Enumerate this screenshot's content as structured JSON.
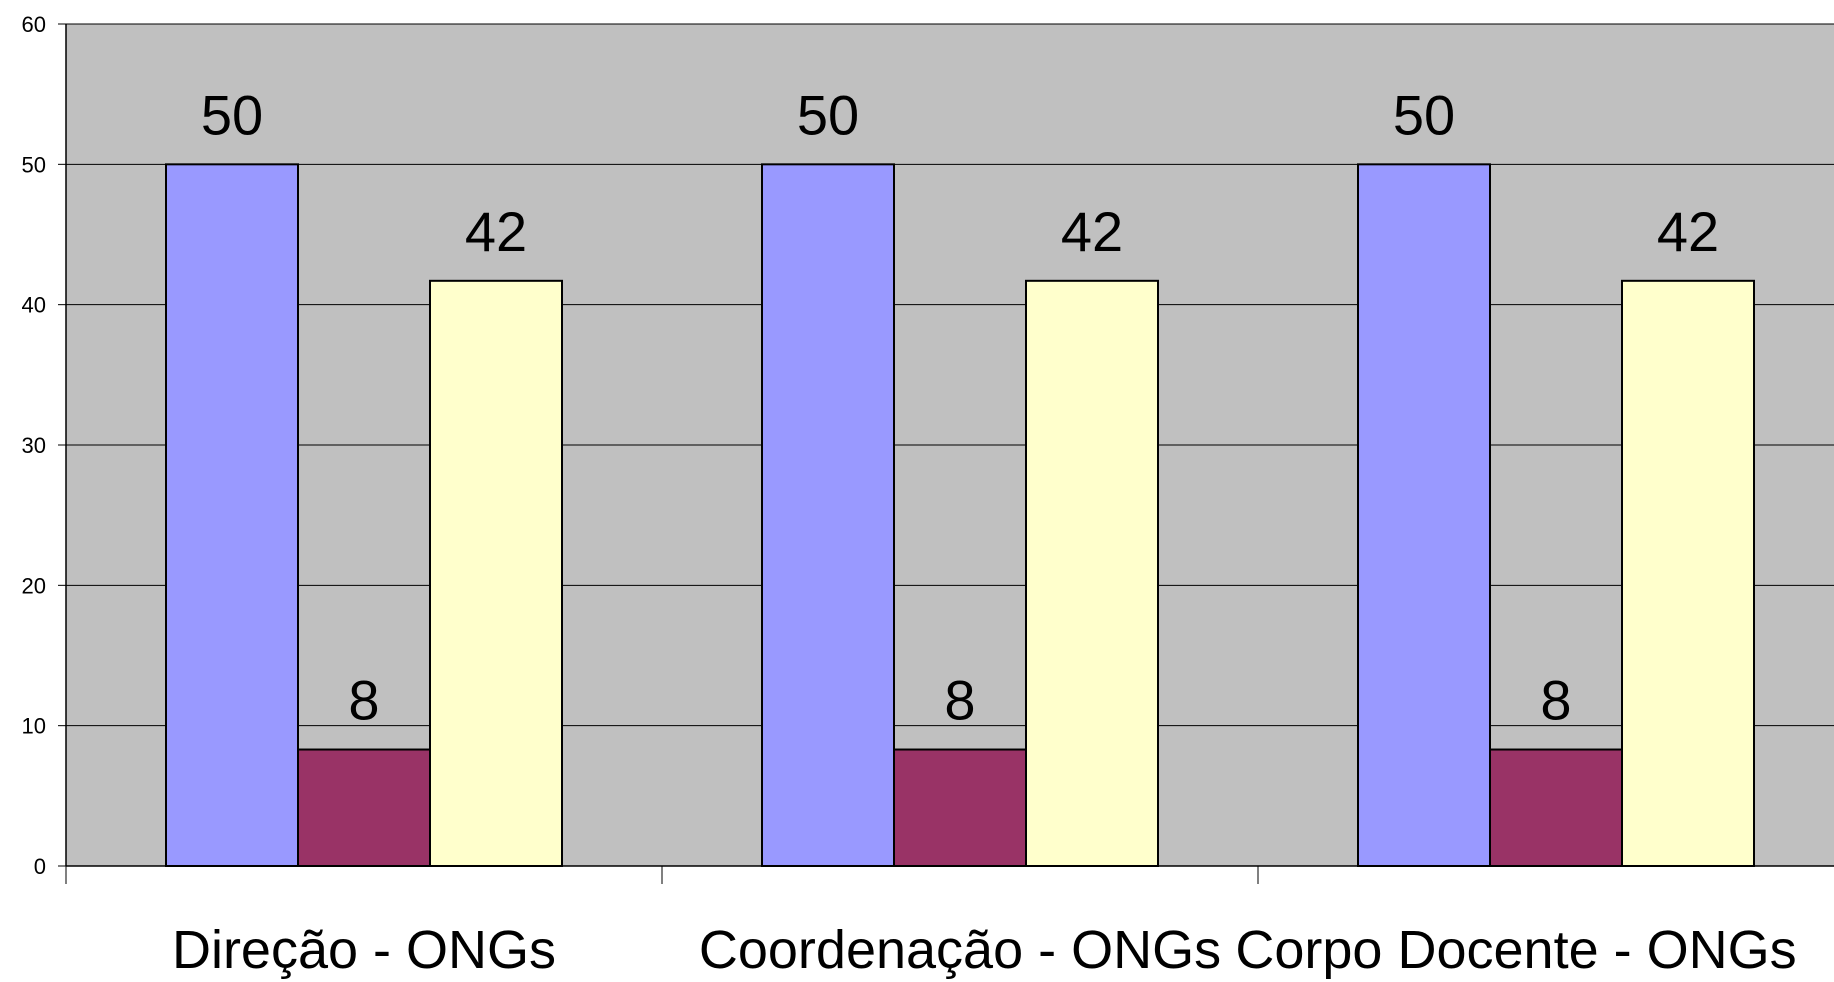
{
  "chart_data": {
    "type": "bar",
    "categories": [
      "Direção - ONGs",
      "Coordenação - ONGs",
      "Corpo Docente - ONGs"
    ],
    "series": [
      {
        "values": [
          50,
          50,
          50
        ],
        "labels": [
          "50",
          "50",
          "50"
        ],
        "color": "#9999ff"
      },
      {
        "values": [
          8.3,
          8.3,
          8.3
        ],
        "labels": [
          "8",
          "8",
          "8"
        ],
        "color": "#993366"
      },
      {
        "values": [
          41.7,
          41.7,
          41.7
        ],
        "labels": [
          "42",
          "42",
          "42"
        ],
        "color": "#ffffcc"
      }
    ],
    "ylim": [
      0,
      60
    ],
    "yticks": [
      0,
      10,
      20,
      30,
      40,
      50,
      60
    ],
    "grid": true,
    "plot_background": "#c0c0c0",
    "gridline_color": "#000000",
    "bar_outline_color": "#000000"
  }
}
